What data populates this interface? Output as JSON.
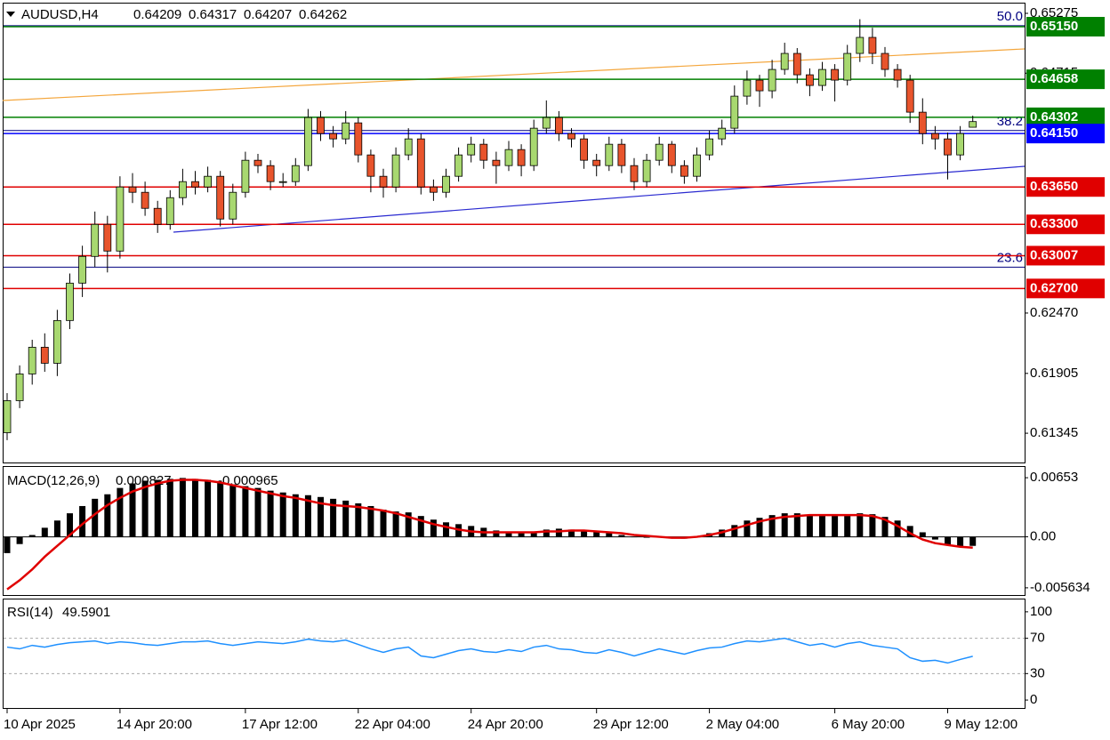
{
  "chart_data": [
    {
      "type": "candlestick",
      "title": "AUDUSD,H4",
      "categories": [
        "10 Apr 2025",
        null,
        null,
        null,
        null,
        null,
        null,
        null,
        null,
        "14 Apr 20:00",
        null,
        null,
        null,
        null,
        null,
        null,
        null,
        null,
        null,
        "17 Apr 12:00",
        null,
        null,
        null,
        null,
        null,
        null,
        null,
        null,
        "22 Apr 04:00",
        null,
        null,
        null,
        null,
        null,
        null,
        null,
        null,
        "24 Apr 20:00",
        null,
        null,
        null,
        null,
        null,
        null,
        null,
        null,
        null,
        "29 Apr 12:00",
        null,
        null,
        null,
        null,
        null,
        null,
        null,
        null,
        "2 May 04:00",
        null,
        null,
        null,
        null,
        null,
        null,
        null,
        null,
        null,
        "6 May 20:00",
        null,
        null,
        null,
        null,
        null,
        null,
        null,
        null,
        "9 May 12:00",
        null,
        null
      ],
      "ohlc": [
        [
          0.6135,
          0.6172,
          0.6128,
          0.6165
        ],
        [
          0.6165,
          0.6198,
          0.6158,
          0.619
        ],
        [
          0.619,
          0.6222,
          0.618,
          0.6215
        ],
        [
          0.6215,
          0.6228,
          0.6192,
          0.62
        ],
        [
          0.62,
          0.625,
          0.6188,
          0.624
        ],
        [
          0.624,
          0.6284,
          0.6232,
          0.6275
        ],
        [
          0.6275,
          0.631,
          0.6262,
          0.63
        ],
        [
          0.63,
          0.6342,
          0.629,
          0.633
        ],
        [
          0.633,
          0.6338,
          0.6285,
          0.6305
        ],
        [
          0.6305,
          0.6375,
          0.6298,
          0.6365
        ],
        [
          0.6365,
          0.6378,
          0.635,
          0.636
        ],
        [
          0.636,
          0.637,
          0.6338,
          0.6345
        ],
        [
          0.6345,
          0.6352,
          0.6322,
          0.633
        ],
        [
          0.633,
          0.6362,
          0.6325,
          0.6355
        ],
        [
          0.6355,
          0.6382,
          0.6348,
          0.637
        ],
        [
          0.637,
          0.638,
          0.6358,
          0.6365
        ],
        [
          0.6365,
          0.6384,
          0.636,
          0.6375
        ],
        [
          0.6375,
          0.638,
          0.6328,
          0.6335
        ],
        [
          0.6335,
          0.6368,
          0.633,
          0.636
        ],
        [
          0.636,
          0.6398,
          0.6355,
          0.639
        ],
        [
          0.639,
          0.6396,
          0.6378,
          0.6385
        ],
        [
          0.6385,
          0.639,
          0.6362,
          0.637
        ],
        [
          0.637,
          0.6378,
          0.6365,
          0.637
        ],
        [
          0.637,
          0.6392,
          0.6366,
          0.6385
        ],
        [
          0.6385,
          0.6438,
          0.638,
          0.643
        ],
        [
          0.643,
          0.6436,
          0.6408,
          0.6415
        ],
        [
          0.6415,
          0.6422,
          0.6402,
          0.641
        ],
        [
          0.641,
          0.6436,
          0.6405,
          0.6425
        ],
        [
          0.6425,
          0.643,
          0.6388,
          0.6395
        ],
        [
          0.6395,
          0.64,
          0.636,
          0.6375
        ],
        [
          0.6375,
          0.6382,
          0.6355,
          0.6365
        ],
        [
          0.6365,
          0.6402,
          0.636,
          0.6395
        ],
        [
          0.6395,
          0.642,
          0.639,
          0.641
        ],
        [
          0.641,
          0.6415,
          0.6358,
          0.6365
        ],
        [
          0.6365,
          0.6372,
          0.6352,
          0.636
        ],
        [
          0.636,
          0.6382,
          0.6355,
          0.6375
        ],
        [
          0.6375,
          0.6402,
          0.637,
          0.6395
        ],
        [
          0.6395,
          0.6412,
          0.6388,
          0.6405
        ],
        [
          0.6405,
          0.641,
          0.6382,
          0.639
        ],
        [
          0.639,
          0.6398,
          0.6368,
          0.6385
        ],
        [
          0.6385,
          0.6408,
          0.638,
          0.64
        ],
        [
          0.64,
          0.6405,
          0.6375,
          0.6385
        ],
        [
          0.6385,
          0.6428,
          0.638,
          0.642
        ],
        [
          0.642,
          0.6446,
          0.6415,
          0.643
        ],
        [
          0.643,
          0.6436,
          0.6408,
          0.6415
        ],
        [
          0.6415,
          0.642,
          0.6402,
          0.641
        ],
        [
          0.641,
          0.6414,
          0.6382,
          0.639
        ],
        [
          0.639,
          0.6396,
          0.6375,
          0.6385
        ],
        [
          0.6385,
          0.6412,
          0.638,
          0.6405
        ],
        [
          0.6405,
          0.641,
          0.6378,
          0.6385
        ],
        [
          0.6385,
          0.6392,
          0.6362,
          0.637
        ],
        [
          0.637,
          0.6396,
          0.6365,
          0.639
        ],
        [
          0.639,
          0.6412,
          0.6385,
          0.6405
        ],
        [
          0.6405,
          0.6408,
          0.6378,
          0.6385
        ],
        [
          0.6385,
          0.639,
          0.6368,
          0.6375
        ],
        [
          0.6375,
          0.6402,
          0.637,
          0.6395
        ],
        [
          0.6395,
          0.6418,
          0.639,
          0.641
        ],
        [
          0.641,
          0.6428,
          0.6404,
          0.642
        ],
        [
          0.642,
          0.646,
          0.6415,
          0.645
        ],
        [
          0.645,
          0.6474,
          0.6442,
          0.6465
        ],
        [
          0.6465,
          0.647,
          0.644,
          0.6455
        ],
        [
          0.6455,
          0.6484,
          0.6448,
          0.6475
        ],
        [
          0.6475,
          0.65,
          0.647,
          0.649
        ],
        [
          0.649,
          0.6495,
          0.6462,
          0.647
        ],
        [
          0.647,
          0.6476,
          0.645,
          0.646
        ],
        [
          0.646,
          0.6482,
          0.6455,
          0.6475
        ],
        [
          0.6475,
          0.648,
          0.6445,
          0.6465
        ],
        [
          0.6465,
          0.6498,
          0.646,
          0.649
        ],
        [
          0.649,
          0.6522,
          0.6482,
          0.6505
        ],
        [
          0.6505,
          0.6514,
          0.648,
          0.649
        ],
        [
          0.649,
          0.6496,
          0.6468,
          0.6475
        ],
        [
          0.6475,
          0.648,
          0.6458,
          0.6465
        ],
        [
          0.6465,
          0.647,
          0.6425,
          0.6435
        ],
        [
          0.6435,
          0.6448,
          0.6405,
          0.6415
        ],
        [
          0.6415,
          0.6422,
          0.64,
          0.641
        ],
        [
          0.641,
          0.6416,
          0.6372,
          0.6395
        ],
        [
          0.6395,
          0.6422,
          0.639,
          0.6415
        ],
        [
          0.64209,
          0.64317,
          0.64207,
          0.64262
        ]
      ],
      "up_color": "#a8d870",
      "down_color": "#e8542c",
      "ylim": [
        0.61071,
        0.65375
      ],
      "yticks": [
        0.65275,
        0.64715,
        {
          "value": 0.6247,
          "label": "0.62470"
        },
        0.61905,
        0.61345
      ],
      "levels": [
        {
          "value": 0.6515,
          "label": "0.65150",
          "color": "#008000"
        },
        {
          "value": 0.64658,
          "label": "0.64658",
          "color": "#008000"
        },
        {
          "value": 0.64302,
          "label": "0.64302",
          "color": "#008000"
        },
        {
          "value": 0.6415,
          "label": "0.64150",
          "color": "#0000ff"
        },
        {
          "value": 0.6365,
          "label": "0.63650",
          "color": "#e00000"
        },
        {
          "value": 0.633,
          "label": "0.63300",
          "color": "#e00000"
        },
        {
          "value": 0.63007,
          "label": "0.63007",
          "color": "#e00000"
        },
        {
          "value": 0.627,
          "label": "0.62700",
          "color": "#e00000"
        }
      ],
      "fibo": [
        {
          "label": "50.0",
          "value": 0.6516
        },
        {
          "label": "38.2",
          "value": 0.64178
        },
        {
          "label": "23.6",
          "value": 0.62899
        }
      ]
    },
    {
      "type": "macd",
      "title": "MACD(12,26,9)",
      "main_value": 0.000827,
      "signal_value": -0.000965,
      "histogram": [
        -0.0018,
        -0.0008,
        0.0002,
        0.001,
        0.0018,
        0.0026,
        0.0034,
        0.0042,
        0.0047,
        0.0054,
        0.0059,
        0.0062,
        0.0063,
        0.0064,
        0.0065,
        0.0064,
        0.0063,
        0.006,
        0.0058,
        0.0056,
        0.0054,
        0.0051,
        0.0049,
        0.0047,
        0.0046,
        0.0044,
        0.0042,
        0.004,
        0.0037,
        0.0034,
        0.003,
        0.0028,
        0.0027,
        0.0023,
        0.0019,
        0.0016,
        0.0014,
        0.0012,
        0.001,
        0.0007,
        0.0005,
        0.0004,
        0.0005,
        0.0008,
        0.0009,
        0.0008,
        0.0007,
        0.0005,
        0.0004,
        0.0002,
        0.0,
        -0.0001,
        0.0,
        -0.0001,
        -0.0002,
        0.0,
        0.0004,
        0.0008,
        0.0013,
        0.0018,
        0.0021,
        0.0024,
        0.0026,
        0.0026,
        0.0024,
        0.0025,
        0.0024,
        0.0025,
        0.0026,
        0.0025,
        0.0022,
        0.0018,
        0.0012,
        0.0005,
        -0.0003,
        -0.0009,
        -0.0011,
        -0.001
      ],
      "signal": [
        -0.0058,
        -0.0048,
        -0.0036,
        -0.0022,
        -0.001,
        0.0002,
        0.0014,
        0.0025,
        0.0035,
        0.0043,
        0.005,
        0.0055,
        0.0059,
        0.0062,
        0.0063,
        0.0063,
        0.0062,
        0.006,
        0.0057,
        0.0054,
        0.0051,
        0.0048,
        0.0045,
        0.0043,
        0.004,
        0.0037,
        0.0035,
        0.0034,
        0.0033,
        0.0031,
        0.0029,
        0.0026,
        0.0022,
        0.0018,
        0.0014,
        0.0011,
        0.0008,
        0.0006,
        0.0005,
        0.0005,
        0.0005,
        0.0005,
        0.0005,
        0.0006,
        0.0006,
        0.0007,
        0.0007,
        0.0006,
        0.0005,
        0.0004,
        0.0002,
        0.0001,
        0.0,
        -0.0001,
        -0.0001,
        0.0,
        0.0002,
        0.0005,
        0.0009,
        0.0013,
        0.0017,
        0.002,
        0.0022,
        0.0023,
        0.0024,
        0.0024,
        0.0024,
        0.0024,
        0.0024,
        0.0023,
        0.0019,
        0.0012,
        0.0004,
        -0.0003,
        -0.0007,
        -0.0009,
        -0.0011,
        -0.0012
      ],
      "histogram_color": "#000000",
      "signal_color": "#e00000",
      "ylim": [
        -0.00643,
        0.00772
      ],
      "yticks": [
        0.00653,
        {
          "value": 0,
          "label": "0.00"
        },
        -0.005634
      ]
    },
    {
      "type": "rsi",
      "title": "RSI(14)",
      "values": [
        60,
        58,
        62,
        60,
        63,
        65,
        66,
        67,
        64,
        66,
        65,
        63,
        62,
        64,
        66,
        66,
        67,
        64,
        62,
        64,
        66,
        65,
        64,
        66,
        69,
        67,
        66,
        68,
        63,
        58,
        54,
        58,
        60,
        50,
        48,
        52,
        56,
        58,
        55,
        54,
        57,
        55,
        60,
        62,
        58,
        57,
        54,
        53,
        57,
        54,
        50,
        54,
        58,
        55,
        52,
        56,
        59,
        60,
        64,
        67,
        66,
        68,
        70,
        66,
        62,
        64,
        60,
        64,
        66,
        62,
        60,
        58,
        48,
        44,
        45,
        42,
        46,
        49.5901
      ],
      "color": "#1e90ff",
      "ylim": [
        -9,
        114
      ],
      "yticks": [
        100,
        70,
        30,
        0
      ],
      "levels": [
        70,
        30
      ]
    }
  ]
}
